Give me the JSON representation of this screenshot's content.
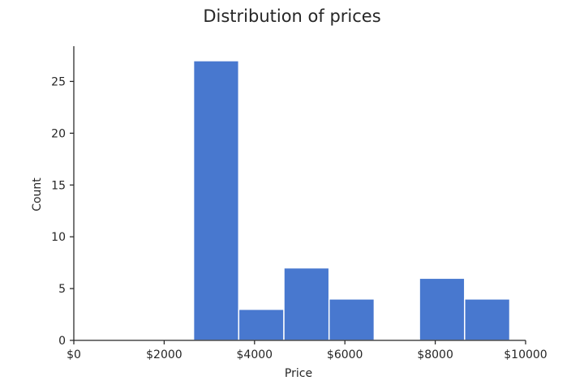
{
  "chart_data": {
    "type": "bar",
    "title": "Distribution of prices",
    "xlabel": "Price",
    "ylabel": "Count",
    "xlim": [
      0,
      10000
    ],
    "ylim": [
      0,
      28.4
    ],
    "x_ticks": [
      0,
      2000,
      4000,
      6000,
      8000,
      10000
    ],
    "x_tick_labels": [
      "$0",
      "$2000",
      "$4000",
      "$6000",
      "$8000",
      "$10000"
    ],
    "y_ticks": [
      0,
      5,
      10,
      15,
      20,
      25
    ],
    "y_tick_labels": [
      "0",
      "5",
      "10",
      "15",
      "20",
      "25"
    ],
    "bins": [
      {
        "x0": 2650,
        "x1": 3650,
        "count": 27
      },
      {
        "x0": 3650,
        "x1": 4650,
        "count": 3
      },
      {
        "x0": 4650,
        "x1": 5650,
        "count": 7
      },
      {
        "x0": 5650,
        "x1": 6650,
        "count": 4
      },
      {
        "x0": 6650,
        "x1": 7650,
        "count": 0
      },
      {
        "x0": 7650,
        "x1": 8650,
        "count": 6
      },
      {
        "x0": 8650,
        "x1": 9650,
        "count": 4
      }
    ],
    "bar_color": "#4878cf",
    "grid": false,
    "legend": "none"
  }
}
